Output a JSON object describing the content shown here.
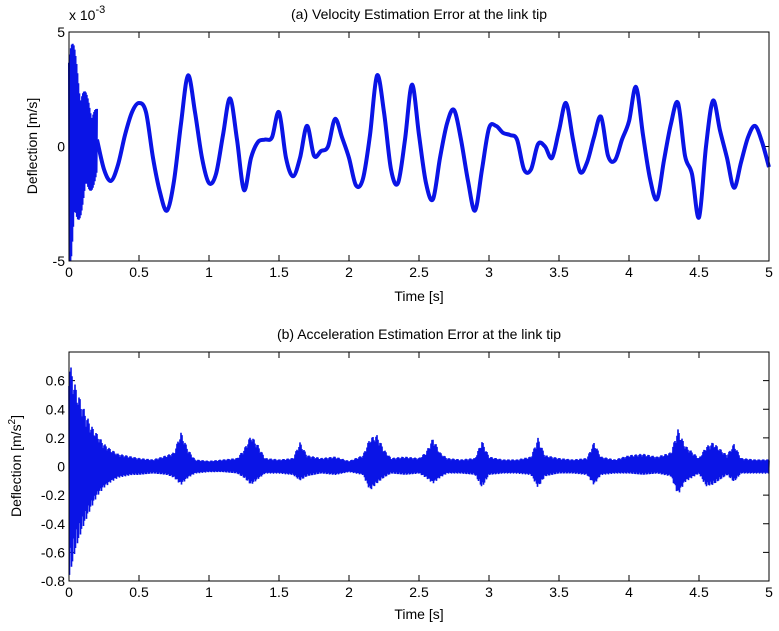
{
  "chart_data": [
    {
      "type": "line",
      "title": "(a) Velocity Estimation Error at the link tip",
      "xlabel": "Time [s]",
      "ylabel": "Deflection [m/s]",
      "multiplier": "x 10",
      "multiplier_exp": "-3",
      "xlim": [
        0,
        5
      ],
      "ylim": [
        -5,
        5
      ],
      "xticks": [
        "0",
        "0.5",
        "1",
        "1.5",
        "2",
        "2.5",
        "3",
        "3.5",
        "4",
        "4.5",
        "5"
      ],
      "yticks": [
        "-5",
        "0",
        "5"
      ],
      "xtick_values": [
        0,
        0.5,
        1,
        1.5,
        2,
        2.5,
        3,
        3.5,
        4,
        4.5,
        5
      ],
      "ytick_values": [
        -5,
        0,
        5
      ],
      "grid": false,
      "color": "#0a14e6",
      "series": [
        {
          "x": [
            0.0,
            0.2,
            0.25,
            0.3,
            0.35,
            0.4,
            0.45,
            0.5,
            0.55,
            0.6,
            0.65,
            0.7,
            0.75,
            0.8,
            0.85,
            0.9,
            0.95,
            1.0,
            1.05,
            1.1,
            1.15,
            1.2,
            1.25,
            1.3,
            1.35,
            1.4,
            1.45,
            1.5,
            1.55,
            1.6,
            1.65,
            1.7,
            1.75,
            1.8,
            1.85,
            1.9,
            1.95,
            2.0,
            2.05,
            2.1,
            2.15,
            2.2,
            2.25,
            2.3,
            2.35,
            2.4,
            2.45,
            2.5,
            2.55,
            2.6,
            2.65,
            2.7,
            2.75,
            2.8,
            2.85,
            2.9,
            2.95,
            3.0,
            3.05,
            3.1,
            3.15,
            3.2,
            3.25,
            3.3,
            3.35,
            3.4,
            3.45,
            3.5,
            3.55,
            3.6,
            3.65,
            3.7,
            3.75,
            3.8,
            3.85,
            3.9,
            3.95,
            4.0,
            4.05,
            4.1,
            4.15,
            4.2,
            4.25,
            4.3,
            4.35,
            4.4,
            4.45,
            4.5,
            4.55,
            4.6,
            4.65,
            4.7,
            4.75,
            4.8,
            4.85,
            4.9,
            4.95,
            5.0
          ],
          "y": [
            0.0,
            0.3,
            -1.0,
            -1.5,
            -0.8,
            0.5,
            1.5,
            1.9,
            1.5,
            -0.5,
            -2.0,
            -2.8,
            -1.5,
            1.0,
            3.1,
            1.5,
            -0.5,
            -1.6,
            -1.2,
            0.5,
            2.1,
            0.3,
            -1.9,
            -0.5,
            0.2,
            0.3,
            0.4,
            1.5,
            -0.5,
            -1.3,
            -0.5,
            0.9,
            -0.4,
            -0.2,
            0.0,
            1.2,
            0.4,
            -0.5,
            -1.7,
            -1.4,
            0.5,
            3.1,
            1.5,
            -1.0,
            -1.6,
            0.3,
            2.7,
            0.5,
            -1.6,
            -2.3,
            -0.5,
            1.0,
            1.6,
            0.3,
            -1.5,
            -2.8,
            -1.0,
            0.8,
            0.9,
            0.6,
            0.5,
            0.3,
            -1.0,
            -1.0,
            0.1,
            0.0,
            -0.5,
            0.7,
            1.9,
            0.3,
            -1.1,
            -0.7,
            0.4,
            1.3,
            -0.4,
            -0.6,
            0.3,
            1.1,
            2.6,
            0.5,
            -1.4,
            -2.3,
            -0.6,
            1.0,
            1.9,
            -0.4,
            -1.2,
            -3.1,
            0.0,
            2.0,
            0.7,
            -0.5,
            -1.8,
            -0.7,
            0.4,
            0.9,
            0.2,
            -0.9
          ]
        }
      ]
    },
    {
      "type": "line",
      "title": "(b) Acceleration Estimation Error at the link tip",
      "xlabel": "Time [s]",
      "ylabel": "Deflection [m/s",
      "ylabel_sup": "2",
      "ylabel_end": "]",
      "xlim": [
        0,
        5
      ],
      "ylim": [
        -0.8,
        0.8
      ],
      "xticks": [
        "0",
        "0.5",
        "1",
        "1.5",
        "2",
        "2.5",
        "3",
        "3.5",
        "4",
        "4.5",
        "5"
      ],
      "yticks": [
        "-0.8",
        "-0.6",
        "-0.4",
        "-0.2",
        "0",
        "0.2",
        "0.4",
        "0.6"
      ],
      "xtick_values": [
        0,
        0.5,
        1,
        1.5,
        2,
        2.5,
        3,
        3.5,
        4,
        4.5,
        5
      ],
      "ytick_values": [
        -0.8,
        -0.6,
        -0.4,
        -0.2,
        0,
        0.2,
        0.4,
        0.6
      ],
      "grid": false,
      "color": "#0a14e6",
      "envelope": {
        "x": [
          0.0,
          0.05,
          0.1,
          0.15,
          0.2,
          0.25,
          0.3,
          0.35,
          0.4,
          0.45,
          0.5,
          0.6,
          0.7,
          0.75,
          0.8,
          0.85,
          0.9,
          1.0,
          1.1,
          1.2,
          1.25,
          1.3,
          1.35,
          1.4,
          1.5,
          1.6,
          1.65,
          1.7,
          1.8,
          1.9,
          2.0,
          2.1,
          2.15,
          2.2,
          2.25,
          2.3,
          2.4,
          2.5,
          2.55,
          2.6,
          2.65,
          2.7,
          2.8,
          2.9,
          2.95,
          3.0,
          3.1,
          3.2,
          3.3,
          3.35,
          3.4,
          3.5,
          3.6,
          3.7,
          3.75,
          3.8,
          3.9,
          4.0,
          4.1,
          4.2,
          4.3,
          4.35,
          4.4,
          4.5,
          4.55,
          4.6,
          4.7,
          4.75,
          4.8,
          4.9,
          5.0
        ],
        "upper": [
          0.75,
          0.55,
          0.42,
          0.3,
          0.23,
          0.16,
          0.12,
          0.09,
          0.08,
          0.07,
          0.06,
          0.05,
          0.08,
          0.1,
          0.24,
          0.12,
          0.05,
          0.04,
          0.05,
          0.06,
          0.12,
          0.22,
          0.15,
          0.06,
          0.05,
          0.06,
          0.17,
          0.08,
          0.06,
          0.07,
          0.04,
          0.08,
          0.2,
          0.22,
          0.12,
          0.06,
          0.07,
          0.06,
          0.1,
          0.2,
          0.1,
          0.06,
          0.05,
          0.06,
          0.18,
          0.07,
          0.05,
          0.05,
          0.07,
          0.2,
          0.08,
          0.06,
          0.05,
          0.06,
          0.17,
          0.07,
          0.05,
          0.08,
          0.09,
          0.07,
          0.1,
          0.26,
          0.15,
          0.06,
          0.14,
          0.17,
          0.08,
          0.16,
          0.06,
          0.05,
          0.05
        ],
        "lower": [
          -0.8,
          -0.58,
          -0.43,
          -0.31,
          -0.21,
          -0.15,
          -0.11,
          -0.08,
          -0.07,
          -0.06,
          -0.06,
          -0.05,
          -0.06,
          -0.08,
          -0.13,
          -0.08,
          -0.05,
          -0.04,
          -0.04,
          -0.05,
          -0.08,
          -0.13,
          -0.09,
          -0.05,
          -0.05,
          -0.06,
          -0.1,
          -0.07,
          -0.05,
          -0.06,
          -0.04,
          -0.06,
          -0.17,
          -0.12,
          -0.08,
          -0.05,
          -0.06,
          -0.05,
          -0.08,
          -0.12,
          -0.08,
          -0.05,
          -0.05,
          -0.06,
          -0.15,
          -0.06,
          -0.05,
          -0.05,
          -0.06,
          -0.15,
          -0.07,
          -0.05,
          -0.05,
          -0.06,
          -0.13,
          -0.06,
          -0.05,
          -0.05,
          -0.06,
          -0.05,
          -0.07,
          -0.2,
          -0.11,
          -0.05,
          -0.14,
          -0.13,
          -0.06,
          -0.11,
          -0.05,
          -0.05,
          -0.05
        ]
      }
    }
  ]
}
